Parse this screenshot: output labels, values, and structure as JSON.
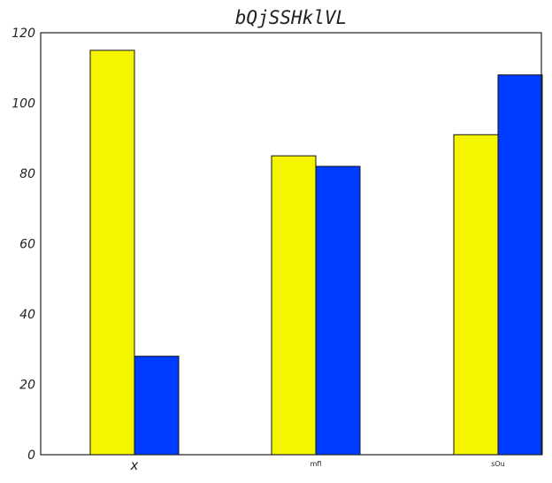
{
  "chart_data": {
    "type": "bar",
    "title": "bQjSSHklVL",
    "xlabel": "",
    "ylabel": "",
    "categories": [
      "x",
      "mfl",
      "sOu"
    ],
    "series": [
      {
        "values": [
          115,
          85,
          91
        ],
        "color": "#f5f500"
      },
      {
        "values": [
          28,
          82,
          108
        ],
        "color": "#003cff"
      }
    ],
    "ylim": [
      0,
      120
    ],
    "yticks": [
      0,
      20,
      40,
      60,
      80,
      100,
      120
    ],
    "grid": false,
    "legend": "none"
  }
}
